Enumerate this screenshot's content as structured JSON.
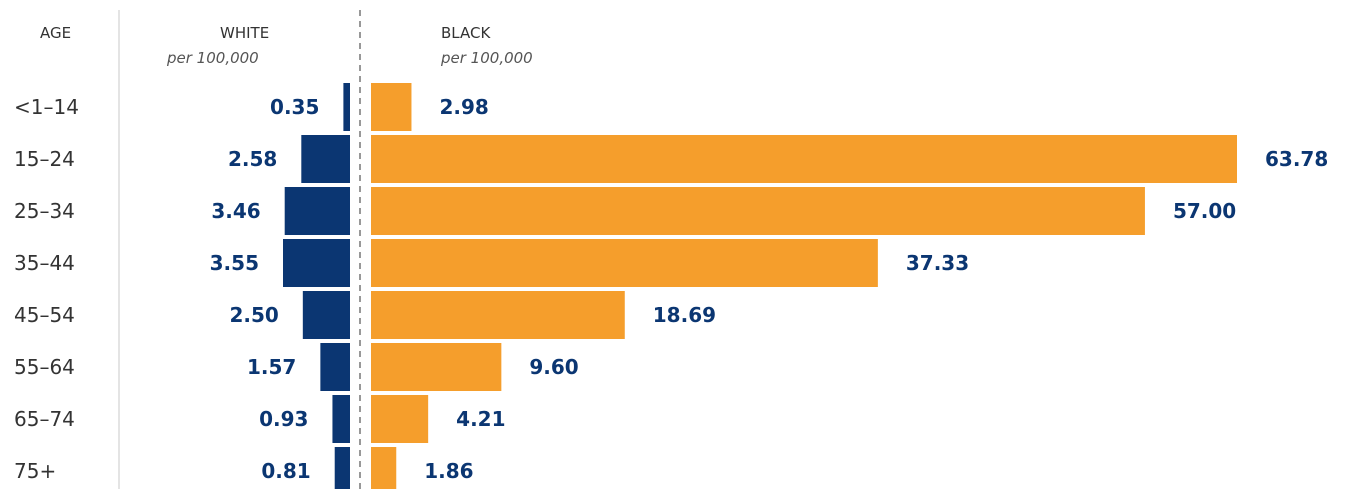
{
  "chart_data": {
    "type": "bar",
    "orientation": "horizontal-diverging",
    "category_header": "AGE",
    "categories": [
      "<1–14",
      "15–24",
      "25–34",
      "35–44",
      "45–54",
      "55–64",
      "65–74",
      "75+"
    ],
    "series": [
      {
        "name": "WHITE",
        "unit_label": "per 100,000",
        "values": [
          0.35,
          2.58,
          3.46,
          3.55,
          2.5,
          1.57,
          0.93,
          0.81
        ],
        "labels": [
          "0.35",
          "2.58",
          "3.46",
          "3.55",
          "2.50",
          "1.57",
          "0.93",
          "0.81"
        ],
        "color": "#0b3672",
        "side": "left"
      },
      {
        "name": "BLACK",
        "unit_label": "per 100,000",
        "values": [
          2.98,
          63.78,
          57.0,
          37.33,
          18.69,
          9.6,
          4.21,
          1.86
        ],
        "labels": [
          "2.98",
          "63.78",
          "57.00",
          "37.33",
          "18.69",
          "9.60",
          "4.21",
          "1.86"
        ],
        "color": "#f59e2c",
        "side": "right"
      }
    ],
    "label_color": "#0b3672",
    "grid": false,
    "legend": "none"
  }
}
